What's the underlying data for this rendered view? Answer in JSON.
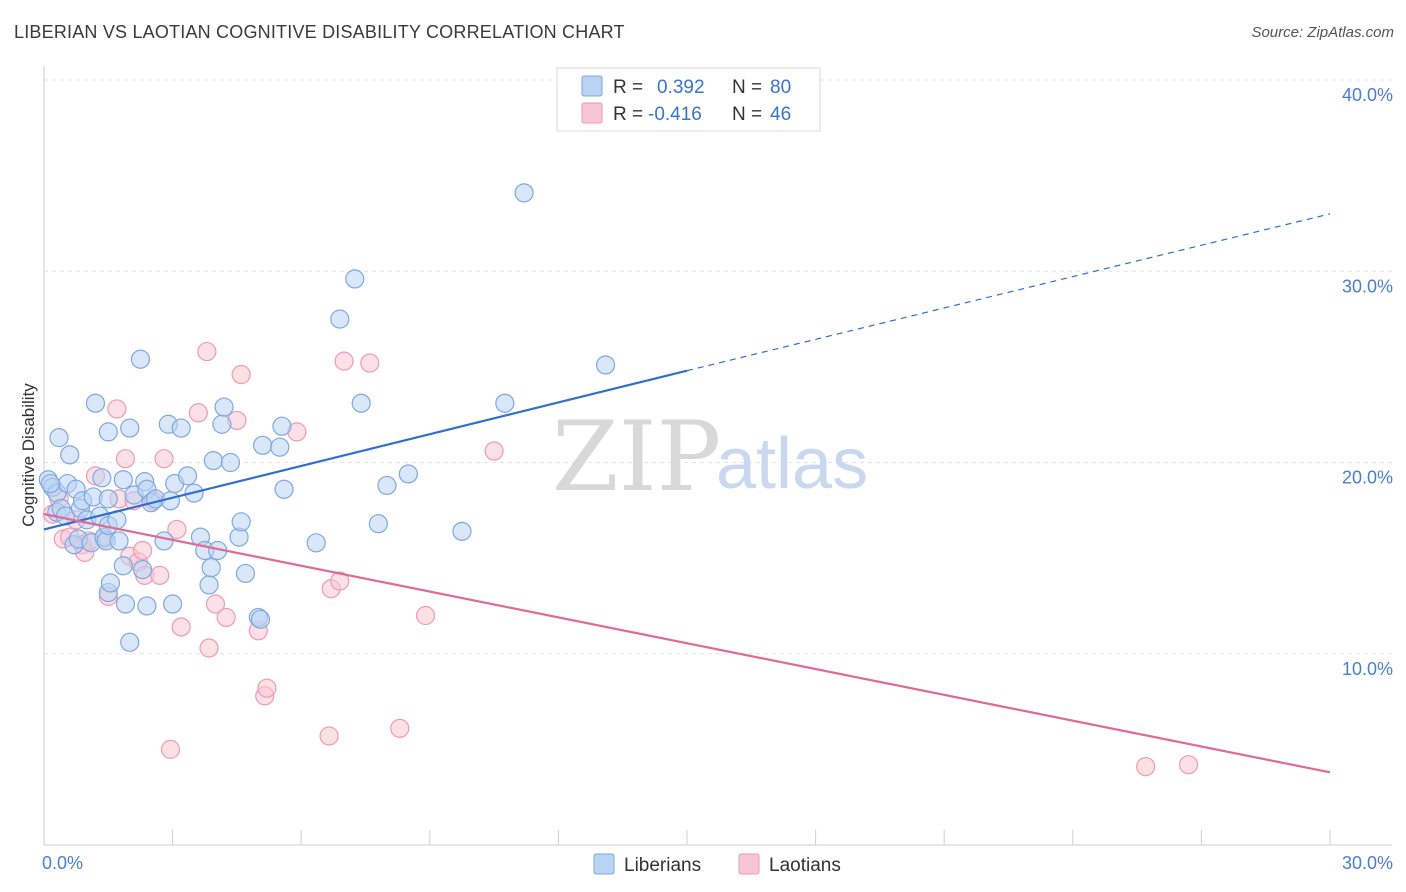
{
  "header": {
    "title": "LIBERIAN VS LAOTIAN COGNITIVE DISABILITY CORRELATION CHART",
    "source": "Source: ZipAtlas.com"
  },
  "legend": {
    "r_label": "R =",
    "n_label": "N =",
    "rows": [
      {
        "r": "0.392",
        "n": "80"
      },
      {
        "r": "-0.416",
        "n": "46"
      }
    ]
  },
  "watermark": {
    "zip": "ZIP",
    "atlas": "atlas"
  },
  "colors": {
    "blue_fill": "#b9d3f3",
    "blue_stroke": "#7fa8e0",
    "blue_line": "#2f6fcf",
    "pink_fill": "#f7c6d6",
    "pink_stroke": "#ef9ab4",
    "pink_line": "#e06a93",
    "tick_text": "#4a7fd0",
    "grid": "#e3e3e3"
  },
  "chart_data": {
    "type": "scatter",
    "title": "LIBERIAN VS LAOTIAN COGNITIVE DISABILITY CORRELATION CHART",
    "xlabel": "",
    "ylabel": "Cognitive Disability",
    "xlim": [
      0,
      30
    ],
    "ylim": [
      0,
      40
    ],
    "x_tick_labels": [
      "0.0%",
      "30.0%"
    ],
    "y_ticks": [
      10,
      20,
      30,
      40
    ],
    "y_tick_labels": [
      "10.0%",
      "20.0%",
      "30.0%",
      "40.0%"
    ],
    "grid": true,
    "legend_position": "top-center",
    "series": [
      {
        "name": "Liberians",
        "r": 0.392,
        "n": 80,
        "trend": {
          "x0": 0,
          "y0": 16.5,
          "x1": 15,
          "y1": 24.8,
          "dashed_to_x": 30,
          "dashed_to_y": 33.0
        },
        "points": [
          [
            0.1,
            19.1
          ],
          [
            0.2,
            18.7
          ],
          [
            0.3,
            17.4
          ],
          [
            0.3,
            18.4
          ],
          [
            0.35,
            21.3
          ],
          [
            0.4,
            17.6
          ],
          [
            0.5,
            17.2
          ],
          [
            0.55,
            18.9
          ],
          [
            0.6,
            20.4
          ],
          [
            0.7,
            15.7
          ],
          [
            0.75,
            18.6
          ],
          [
            0.8,
            16.0
          ],
          [
            0.85,
            17.6
          ],
          [
            0.9,
            18.0
          ],
          [
            1.0,
            17.0
          ],
          [
            1.1,
            15.8
          ],
          [
            1.15,
            18.2
          ],
          [
            1.2,
            23.1
          ],
          [
            1.3,
            17.2
          ],
          [
            1.35,
            19.2
          ],
          [
            1.4,
            16.1
          ],
          [
            1.45,
            15.9
          ],
          [
            1.5,
            16.7
          ],
          [
            1.5,
            18.1
          ],
          [
            1.5,
            21.6
          ],
          [
            1.5,
            13.2
          ],
          [
            1.55,
            13.7
          ],
          [
            1.7,
            17.0
          ],
          [
            1.75,
            15.9
          ],
          [
            1.85,
            19.1
          ],
          [
            1.85,
            14.6
          ],
          [
            1.9,
            12.6
          ],
          [
            2.0,
            10.6
          ],
          [
            2.0,
            21.8
          ],
          [
            2.1,
            18.3
          ],
          [
            2.25,
            25.4
          ],
          [
            2.3,
            14.4
          ],
          [
            2.35,
            19.0
          ],
          [
            2.4,
            12.5
          ],
          [
            2.4,
            18.6
          ],
          [
            2.5,
            17.9
          ],
          [
            2.6,
            18.1
          ],
          [
            2.8,
            15.9
          ],
          [
            2.9,
            22.0
          ],
          [
            2.95,
            18.0
          ],
          [
            3.0,
            12.6
          ],
          [
            3.05,
            18.9
          ],
          [
            3.2,
            21.8
          ],
          [
            3.35,
            19.3
          ],
          [
            3.5,
            18.4
          ],
          [
            3.65,
            16.1
          ],
          [
            3.75,
            15.4
          ],
          [
            3.85,
            13.6
          ],
          [
            3.9,
            14.5
          ],
          [
            3.95,
            20.1
          ],
          [
            4.05,
            15.4
          ],
          [
            4.15,
            22.0
          ],
          [
            4.2,
            22.9
          ],
          [
            4.35,
            20.0
          ],
          [
            4.55,
            16.1
          ],
          [
            4.6,
            16.9
          ],
          [
            4.7,
            14.2
          ],
          [
            5.0,
            11.9
          ],
          [
            5.05,
            11.8
          ],
          [
            5.1,
            20.9
          ],
          [
            5.5,
            20.8
          ],
          [
            5.55,
            21.9
          ],
          [
            5.6,
            18.6
          ],
          [
            6.35,
            15.8
          ],
          [
            6.9,
            27.5
          ],
          [
            7.25,
            29.6
          ],
          [
            7.4,
            23.1
          ],
          [
            7.8,
            16.8
          ],
          [
            8.0,
            18.8
          ],
          [
            8.5,
            19.4
          ],
          [
            9.75,
            16.4
          ],
          [
            10.75,
            23.1
          ],
          [
            11.2,
            34.1
          ],
          [
            13.1,
            25.1
          ],
          [
            0.15,
            18.9
          ]
        ]
      },
      {
        "name": "Laotians",
        "r": -0.416,
        "n": 46,
        "trend": {
          "x0": 0,
          "y0": 17.3,
          "x1": 30,
          "y1": 3.8
        },
        "points": [
          [
            0.2,
            17.3
          ],
          [
            0.35,
            18.1
          ],
          [
            0.45,
            16.0
          ],
          [
            0.6,
            16.1
          ],
          [
            0.75,
            17.0
          ],
          [
            0.9,
            15.7
          ],
          [
            0.95,
            15.3
          ],
          [
            1.05,
            15.9
          ],
          [
            1.2,
            19.3
          ],
          [
            1.4,
            16.0
          ],
          [
            1.5,
            13.0
          ],
          [
            1.7,
            22.8
          ],
          [
            1.75,
            18.1
          ],
          [
            1.9,
            20.2
          ],
          [
            2.0,
            15.1
          ],
          [
            2.1,
            18.0
          ],
          [
            2.2,
            14.8
          ],
          [
            2.3,
            15.4
          ],
          [
            2.35,
            14.1
          ],
          [
            2.55,
            18.0
          ],
          [
            2.7,
            14.1
          ],
          [
            2.8,
            20.2
          ],
          [
            2.95,
            5.0
          ],
          [
            3.1,
            16.5
          ],
          [
            3.2,
            11.4
          ],
          [
            3.6,
            22.6
          ],
          [
            3.8,
            25.8
          ],
          [
            3.85,
            10.3
          ],
          [
            4.0,
            12.6
          ],
          [
            4.25,
            11.9
          ],
          [
            4.5,
            22.2
          ],
          [
            4.6,
            24.6
          ],
          [
            5.0,
            11.2
          ],
          [
            5.15,
            7.8
          ],
          [
            5.2,
            8.2
          ],
          [
            5.9,
            21.6
          ],
          [
            6.65,
            5.7
          ],
          [
            6.7,
            13.4
          ],
          [
            6.9,
            13.8
          ],
          [
            7.0,
            25.3
          ],
          [
            7.6,
            25.2
          ],
          [
            8.3,
            6.1
          ],
          [
            8.9,
            12.0
          ],
          [
            10.5,
            20.6
          ],
          [
            25.7,
            4.1
          ],
          [
            26.7,
            4.2
          ]
        ]
      }
    ]
  },
  "bottom_legend": {
    "series1": "Liberians",
    "series2": "Laotians"
  }
}
